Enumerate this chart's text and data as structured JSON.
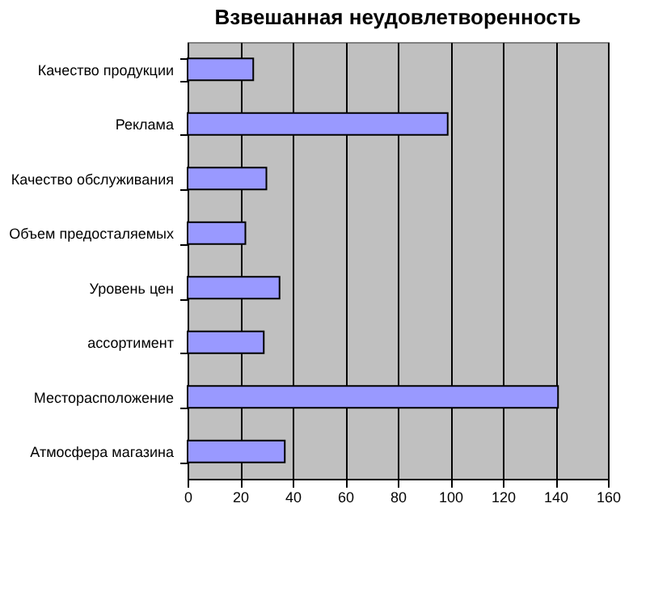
{
  "chart_data": {
    "type": "bar",
    "orientation": "horizontal",
    "title": "Взвешанная неудовлетворенность",
    "categories": [
      "Качество продукции",
      "Реклама",
      "Качество обслуживания",
      "Объем предосталяемых",
      "Уровень цен",
      "ассортимент",
      "Месторасположение",
      "Атмосфера магазина"
    ],
    "values": [
      25,
      99,
      30,
      22,
      35,
      29,
      141,
      37
    ],
    "color": "#9999ff",
    "xlim": [
      0,
      160
    ],
    "xticks": [
      0,
      20,
      40,
      60,
      80,
      100,
      120,
      140,
      160
    ],
    "grid": "x"
  }
}
